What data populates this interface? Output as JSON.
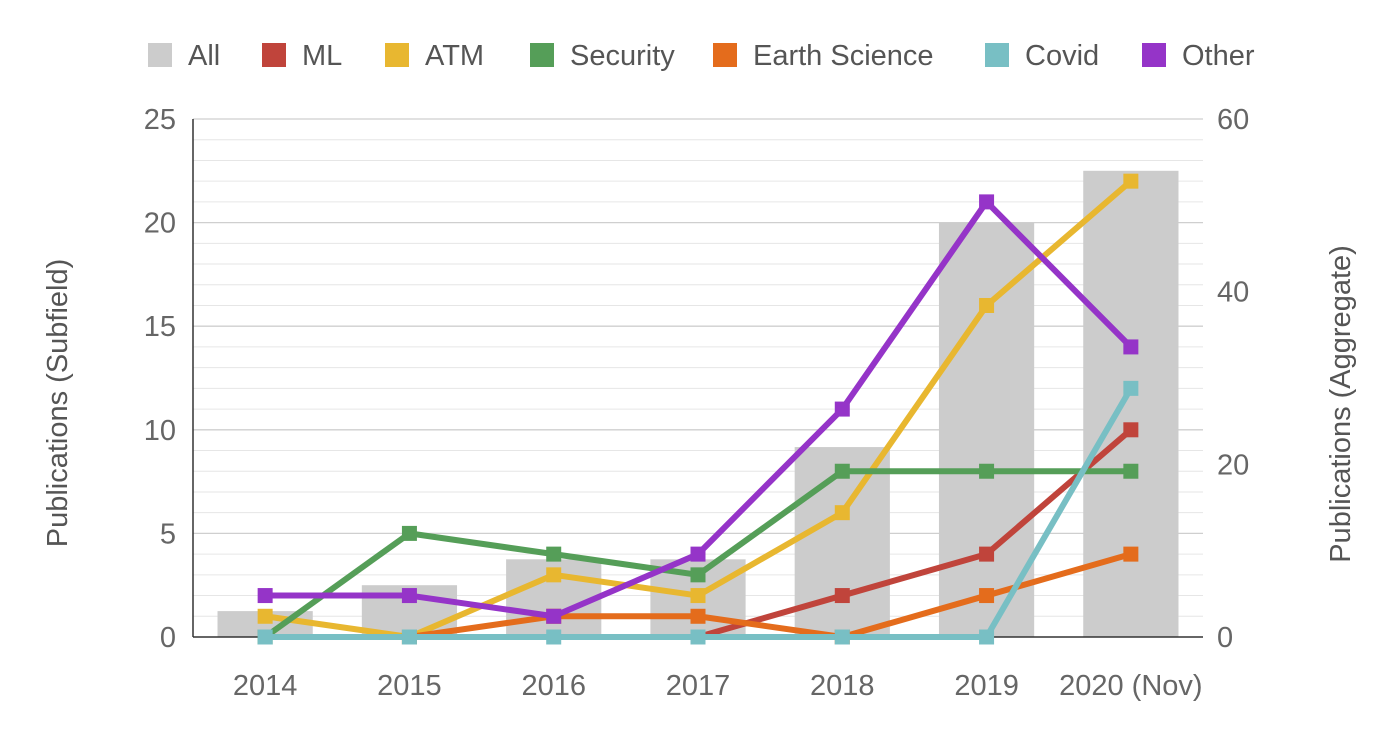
{
  "chart_data": {
    "type": "bar+line",
    "categories": [
      "2014",
      "2015",
      "2016",
      "2017",
      "2018",
      "2019",
      "2020 (Nov)"
    ],
    "bar_series": {
      "name": "All",
      "axis": "right",
      "color": "#cccccc",
      "values": [
        3,
        6,
        9,
        9,
        22,
        48,
        54
      ]
    },
    "series": [
      {
        "name": "ML",
        "axis": "left",
        "color": "#c0443b",
        "values": [
          null,
          null,
          null,
          0,
          2,
          4,
          10
        ]
      },
      {
        "name": "ATM",
        "axis": "left",
        "color": "#e8b730",
        "values": [
          1,
          0,
          3,
          2,
          6,
          16,
          22
        ]
      },
      {
        "name": "Security",
        "axis": "left",
        "color": "#559e58",
        "values": [
          0,
          5,
          4,
          3,
          8,
          8,
          8
        ]
      },
      {
        "name": "Earth Science",
        "axis": "left",
        "color": "#e46c1c",
        "values": [
          null,
          0,
          1,
          1,
          0,
          2,
          4
        ]
      },
      {
        "name": "Covid",
        "axis": "left",
        "color": "#78bfc4",
        "values": [
          0,
          0,
          0,
          0,
          0,
          0,
          12
        ]
      },
      {
        "name": "Other",
        "axis": "left",
        "color": "#9534c8",
        "values": [
          2,
          2,
          1,
          4,
          11,
          21,
          14
        ]
      }
    ],
    "ylabel_left": "Publications (Subfield)",
    "ylabel_right": "Publications (Aggregate)",
    "ylim_left": [
      0,
      25
    ],
    "yticks_left": [
      0,
      5,
      10,
      15,
      20,
      25
    ],
    "ylim_right": [
      0,
      60
    ],
    "yticks_right": [
      0,
      20,
      40,
      60
    ],
    "grid": true,
    "legend_position": "top"
  }
}
